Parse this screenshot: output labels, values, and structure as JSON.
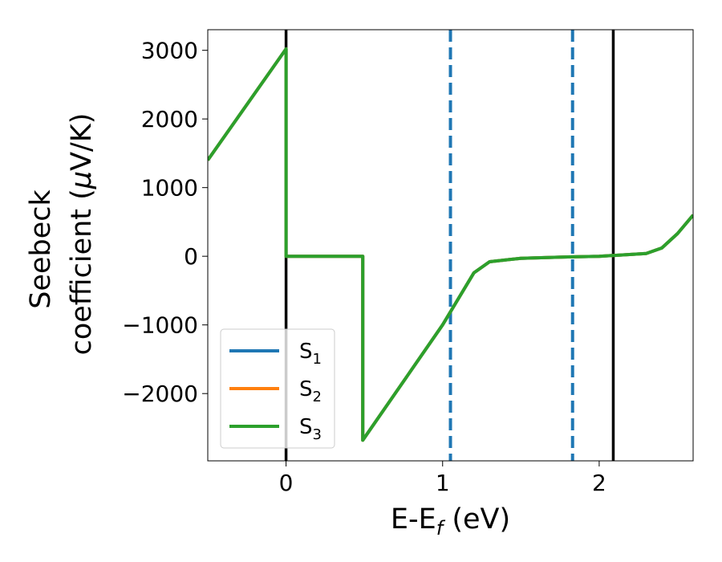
{
  "chart_data": {
    "type": "line",
    "xlabel": "E-E$_f$ (eV)",
    "xlabel_parts": {
      "base": "E-E",
      "sub": "f",
      "rest": " (eV)"
    },
    "ylabel_line1": "Seebeck",
    "ylabel_line2_text": "coefficient  (",
    "ylabel_line2_mu": "μ",
    "ylabel_line2_end": "V/K)",
    "xlim": [
      -0.5,
      2.6
    ],
    "ylim": [
      -2980,
      3300
    ],
    "x_ticks": [
      0,
      1,
      2
    ],
    "x_tick_labels": [
      "0",
      "1",
      "2"
    ],
    "y_ticks": [
      -2000,
      -1000,
      0,
      1000,
      2000,
      3000
    ],
    "y_tick_labels": [
      "−2000",
      "−1000",
      "0",
      "1000",
      "2000",
      "3000"
    ],
    "grid": false,
    "legend_position": "lower-left",
    "series": [
      {
        "name": "S",
        "sub": "1",
        "color": "#1f77b4",
        "x": [
          -0.5,
          0.0,
          0.0,
          0.49,
          0.49,
          1.0,
          1.2,
          1.3,
          1.5,
          1.8,
          2.0,
          2.3,
          2.4,
          2.5,
          2.6
        ],
        "y": [
          1400,
          3020,
          0,
          0,
          -2680,
          -1000,
          -240,
          -80,
          -30,
          -10,
          0,
          40,
          120,
          330,
          600
        ]
      },
      {
        "name": "S",
        "sub": "2",
        "color": "#ff7f0e",
        "x": [
          -0.5,
          0.0,
          0.0,
          0.49,
          0.49,
          1.0,
          1.2,
          1.3,
          1.5,
          1.8,
          2.0,
          2.3,
          2.4,
          2.5,
          2.6
        ],
        "y": [
          1400,
          3020,
          0,
          0,
          -2680,
          -1000,
          -240,
          -80,
          -30,
          -10,
          0,
          40,
          120,
          330,
          600
        ]
      },
      {
        "name": "S",
        "sub": "3",
        "color": "#2ca02c",
        "x": [
          -0.5,
          0.0,
          0.0,
          0.49,
          0.49,
          1.0,
          1.2,
          1.3,
          1.5,
          1.8,
          2.0,
          2.3,
          2.4,
          2.5,
          2.6
        ],
        "y": [
          1400,
          3020,
          0,
          0,
          -2680,
          -1000,
          -240,
          -80,
          -30,
          -10,
          0,
          40,
          120,
          330,
          600
        ]
      }
    ],
    "vertical_lines": [
      {
        "x": 0.0,
        "style": "solid",
        "color": "#000000"
      },
      {
        "x": 2.09,
        "style": "solid",
        "color": "#000000"
      },
      {
        "x": 1.05,
        "style": "dashed",
        "color": "#1f77b4"
      },
      {
        "x": 1.83,
        "style": "dashed",
        "color": "#1f77b4"
      }
    ]
  }
}
